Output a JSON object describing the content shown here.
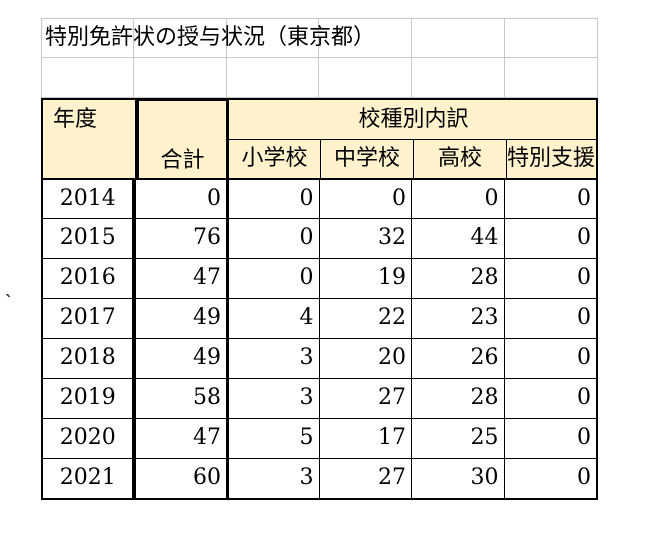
{
  "sheet": {
    "title": "特別免許状の授与状況（東京都）",
    "headers": {
      "year": "年度",
      "total": "合計",
      "group": "校種別内訳",
      "sub": [
        "小学校",
        "中学校",
        "高校",
        "特別支援"
      ]
    },
    "rows": [
      {
        "year": "2014",
        "total": "0",
        "elementary": "0",
        "junior_high": "0",
        "high": "0",
        "special": "0"
      },
      {
        "year": "2015",
        "total": "76",
        "elementary": "0",
        "junior_high": "32",
        "high": "44",
        "special": "0"
      },
      {
        "year": "2016",
        "total": "47",
        "elementary": "0",
        "junior_high": "19",
        "high": "28",
        "special": "0"
      },
      {
        "year": "2017",
        "total": "49",
        "elementary": "4",
        "junior_high": "22",
        "high": "23",
        "special": "0"
      },
      {
        "year": "2018",
        "total": "49",
        "elementary": "3",
        "junior_high": "20",
        "high": "26",
        "special": "0"
      },
      {
        "year": "2019",
        "total": "58",
        "elementary": "3",
        "junior_high": "27",
        "high": "28",
        "special": "0"
      },
      {
        "year": "2020",
        "total": "47",
        "elementary": "5",
        "junior_high": "17",
        "high": "25",
        "special": "0"
      },
      {
        "year": "2021",
        "total": "60",
        "elementary": "3",
        "junior_high": "27",
        "high": "30",
        "special": "0"
      }
    ]
  },
  "edge_mark": "｀"
}
